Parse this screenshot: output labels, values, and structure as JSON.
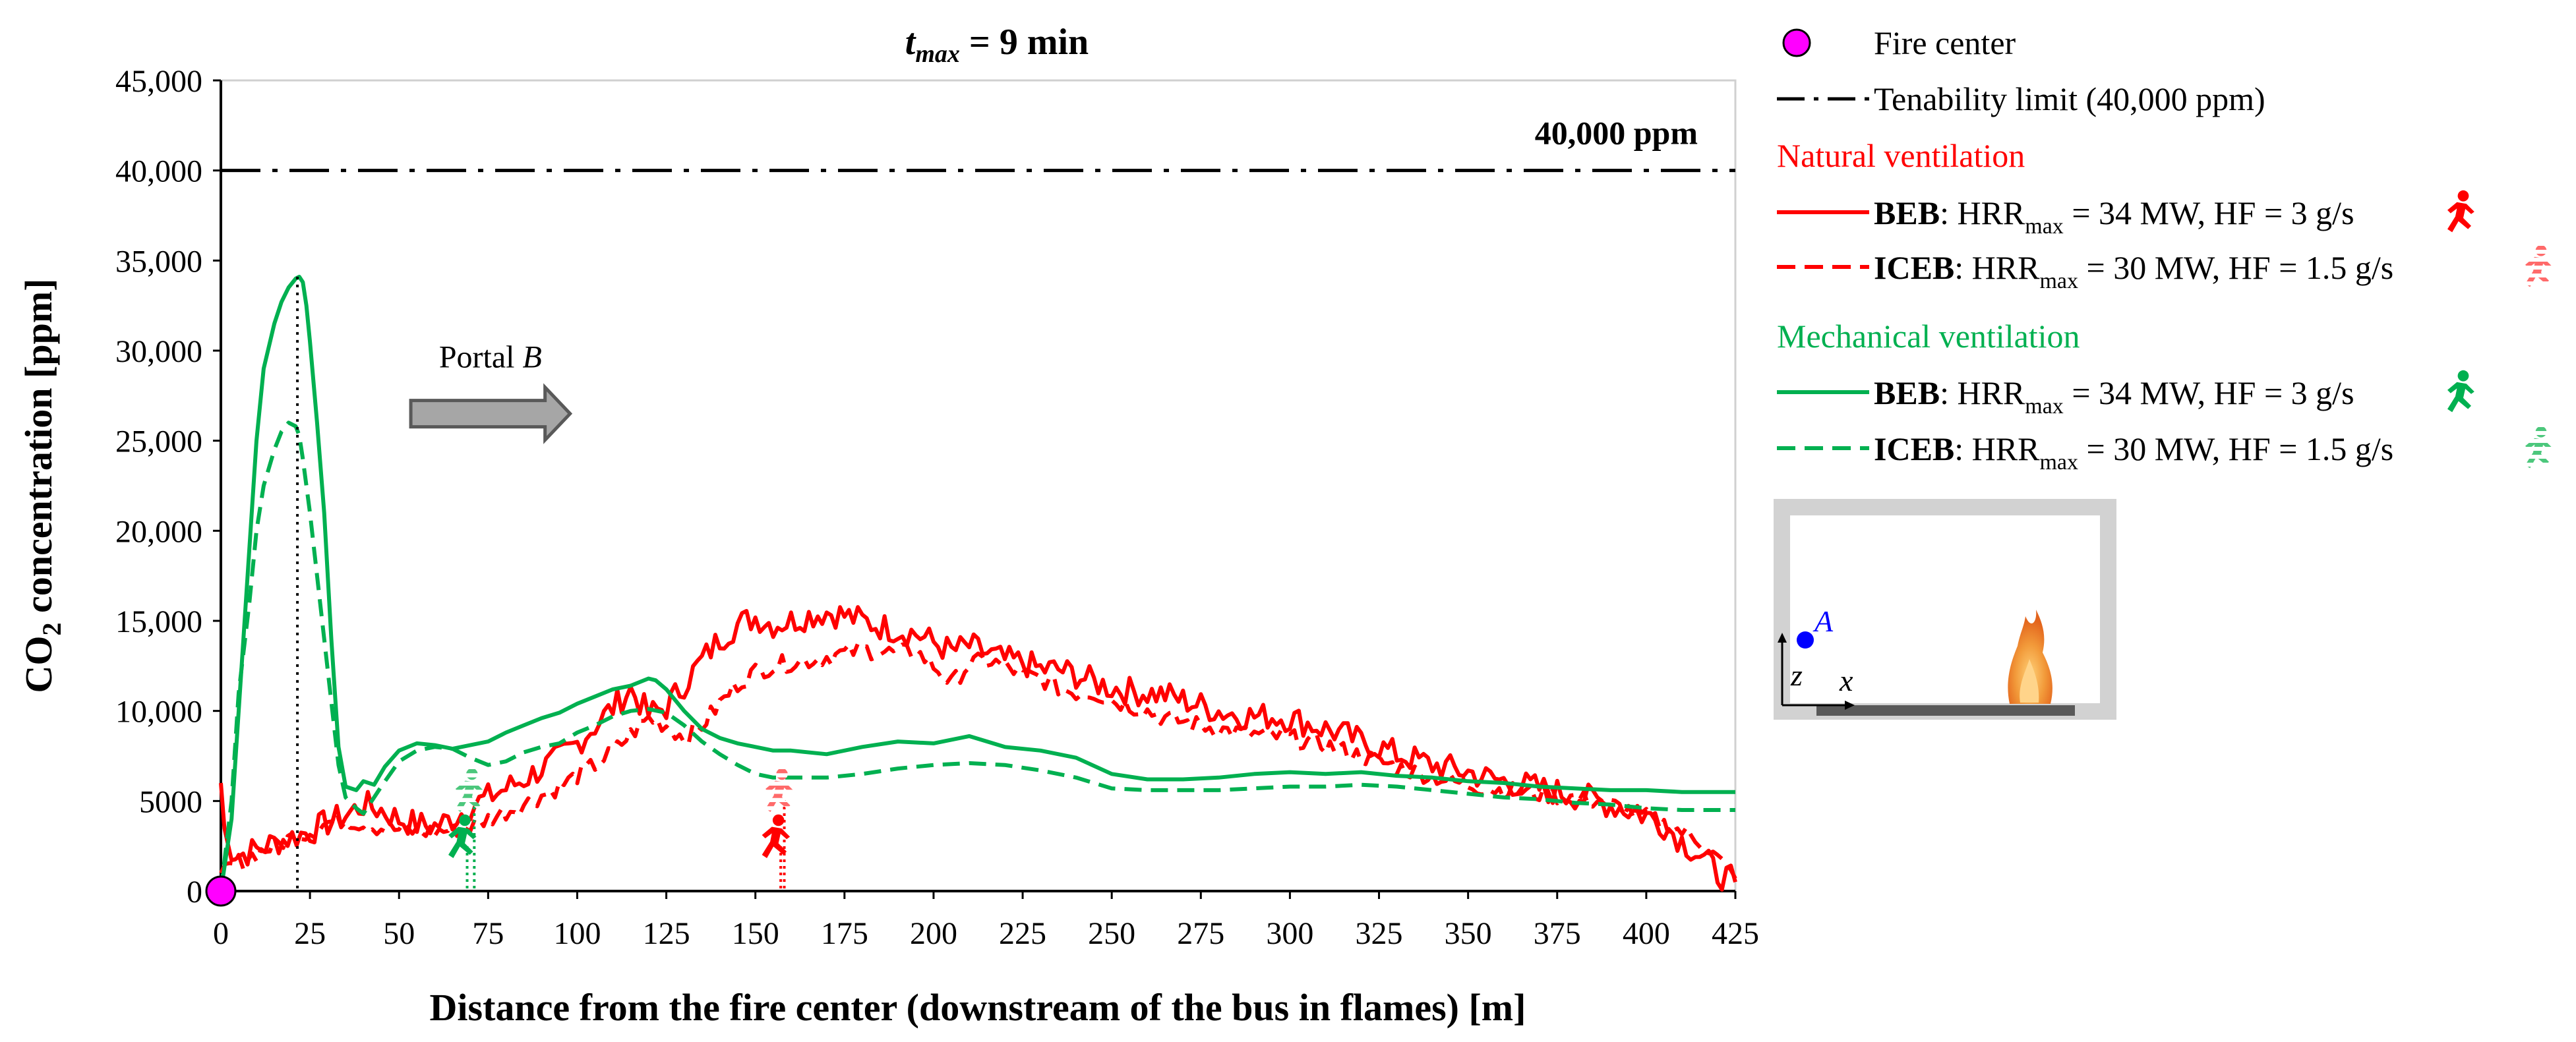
{
  "chart_data": {
    "type": "line",
    "title": {
      "prefix": "t",
      "sub": "max",
      "rest": " = 9 min"
    },
    "xlabel": "Distance from the fire center (downstream of the bus in flames) [m]",
    "ylabel": {
      "pre": "CO",
      "sub": "2",
      "post": " concentration [ppm]"
    },
    "xlim": [
      0,
      425
    ],
    "ylim": [
      0,
      45000
    ],
    "x_ticks": [
      0,
      25,
      50,
      75,
      100,
      125,
      150,
      175,
      200,
      225,
      250,
      275,
      300,
      325,
      350,
      375,
      400,
      425
    ],
    "y_ticks": [
      {
        "value": 0,
        "label": "0"
      },
      {
        "value": 5000,
        "label": "5000"
      },
      {
        "value": 10000,
        "label": "10,000"
      },
      {
        "value": 15000,
        "label": "15,000"
      },
      {
        "value": 20000,
        "label": "20,000"
      },
      {
        "value": 25000,
        "label": "25,000"
      },
      {
        "value": 30000,
        "label": "30,000"
      },
      {
        "value": 35000,
        "label": "35,000"
      },
      {
        "value": 40000,
        "label": "40,000"
      },
      {
        "value": 45000,
        "label": "45,000"
      }
    ],
    "tenability_limit": {
      "value": 40000,
      "label": "40,000 ppm"
    },
    "peak_marker_x": 20,
    "annotation": {
      "label_pre": "Portal ",
      "label_italic": "B",
      "x_start": 57,
      "x_end": 98,
      "y": 26500
    },
    "series": [
      {
        "name": "Natural ventilation BEB",
        "color": "#ff0000",
        "dash": "solid",
        "noise": 800,
        "x": [
          0,
          1,
          2,
          5,
          10,
          15,
          20,
          25,
          30,
          35,
          40,
          45,
          50,
          55,
          60,
          65,
          70,
          75,
          80,
          85,
          90,
          95,
          100,
          105,
          110,
          115,
          120,
          125,
          130,
          135,
          140,
          145,
          150,
          155,
          160,
          165,
          170,
          175,
          180,
          185,
          190,
          195,
          200,
          205,
          210,
          215,
          220,
          225,
          230,
          235,
          240,
          245,
          250,
          255,
          260,
          265,
          270,
          275,
          280,
          285,
          290,
          295,
          300,
          305,
          310,
          315,
          320,
          325,
          330,
          335,
          340,
          345,
          350,
          355,
          360,
          365,
          370,
          375,
          380,
          385,
          390,
          395,
          400,
          405,
          410,
          415,
          420,
          425
        ],
        "y": [
          6000,
          3500,
          2500,
          2000,
          2300,
          2700,
          3000,
          3300,
          3800,
          4200,
          4800,
          4500,
          4000,
          3700,
          3600,
          4000,
          4700,
          5200,
          5700,
          6200,
          6800,
          7400,
          8200,
          9200,
          10200,
          11200,
          9800,
          10200,
          11500,
          12800,
          14000,
          14800,
          15200,
          14800,
          15000,
          15300,
          15500,
          15300,
          15000,
          14700,
          14500,
          14300,
          13800,
          13300,
          13600,
          13200,
          12800,
          12700,
          12300,
          12300,
          12000,
          11600,
          11300,
          11100,
          11000,
          10900,
          10600,
          10300,
          10000,
          9800,
          9700,
          9700,
          9600,
          9300,
          9000,
          8700,
          8300,
          8000,
          7600,
          7300,
          7000,
          6800,
          6600,
          6300,
          6100,
          5900,
          5700,
          5500,
          5300,
          5100,
          4800,
          4500,
          4200,
          3700,
          2800,
          2000,
          1000,
          500
        ]
      },
      {
        "name": "Natural ventilation ICEB",
        "color": "#ff0000",
        "dash": "dashed",
        "noise": 500,
        "x": [
          0,
          5,
          10,
          15,
          20,
          25,
          30,
          35,
          40,
          45,
          50,
          55,
          60,
          65,
          70,
          75,
          80,
          85,
          90,
          95,
          100,
          105,
          110,
          115,
          120,
          125,
          130,
          135,
          140,
          145,
          150,
          155,
          160,
          165,
          170,
          175,
          180,
          185,
          190,
          195,
          200,
          205,
          210,
          215,
          220,
          225,
          230,
          235,
          240,
          245,
          250,
          255,
          260,
          265,
          270,
          275,
          280,
          285,
          290,
          295,
          300,
          305,
          310,
          315,
          320,
          325,
          330,
          335,
          340,
          345,
          350,
          355,
          360,
          365,
          370,
          375,
          380,
          385,
          390,
          395,
          400,
          405,
          410,
          415,
          420,
          425
        ],
        "y": [
          1000,
          1600,
          2100,
          2500,
          3000,
          3300,
          3800,
          4000,
          3700,
          3500,
          3400,
          3300,
          3300,
          3400,
          3600,
          4000,
          4400,
          4800,
          5300,
          5800,
          6400,
          7000,
          7700,
          8700,
          9600,
          9200,
          8500,
          9200,
          10400,
          11500,
          12200,
          12500,
          12700,
          12800,
          13000,
          13200,
          13400,
          13300,
          13200,
          13300,
          12500,
          11500,
          12600,
          12800,
          12500,
          12000,
          11800,
          11300,
          11000,
          11000,
          10600,
          10300,
          10000,
          9600,
          9400,
          9200,
          9000,
          8800,
          8700,
          8600,
          8500,
          8300,
          8100,
          7800,
          7500,
          7200,
          6900,
          6600,
          6400,
          6100,
          5900,
          5700,
          5600,
          5500,
          5400,
          5300,
          5200,
          5000,
          4800,
          4500,
          4100,
          3700,
          3300,
          2800,
          1800,
          700
        ]
      },
      {
        "name": "Mechanical ventilation BEB",
        "color": "#00b050",
        "dash": "solid",
        "noise": 0,
        "x": [
          0,
          3,
          5,
          8,
          10,
          12,
          15,
          17,
          19,
          21,
          22,
          23,
          24,
          25,
          27,
          29,
          31,
          33,
          35,
          38,
          40,
          43,
          46,
          50,
          55,
          60,
          65,
          70,
          75,
          80,
          85,
          90,
          95,
          100,
          105,
          110,
          115,
          120,
          122,
          125,
          130,
          135,
          140,
          145,
          150,
          155,
          160,
          170,
          180,
          190,
          200,
          210,
          220,
          230,
          240,
          250,
          260,
          270,
          280,
          290,
          300,
          310,
          320,
          330,
          340,
          350,
          360,
          370,
          380,
          390,
          400,
          410,
          420,
          425
        ],
        "y": [
          0,
          4000,
          10000,
          19000,
          25000,
          29000,
          31500,
          32700,
          33500,
          34000,
          34100,
          33800,
          32500,
          30500,
          26000,
          21000,
          14000,
          8000,
          5800,
          5600,
          6100,
          5900,
          6900,
          7800,
          8200,
          8100,
          7900,
          8100,
          8300,
          8800,
          9200,
          9600,
          9900,
          10400,
          10800,
          11200,
          11400,
          11800,
          11700,
          11200,
          10000,
          9000,
          8500,
          8200,
          8000,
          7800,
          7800,
          7600,
          8000,
          8300,
          8200,
          8600,
          8000,
          7800,
          7400,
          6500,
          6200,
          6200,
          6300,
          6500,
          6600,
          6500,
          6600,
          6400,
          6300,
          6100,
          6000,
          5800,
          5700,
          5600,
          5600,
          5500,
          5500,
          5500
        ]
      },
      {
        "name": "Mechanical ventilation ICEB",
        "color": "#00b050",
        "dash": "dashed",
        "noise": 0,
        "x": [
          0,
          3,
          5,
          8,
          10,
          12,
          15,
          17,
          19,
          21,
          22,
          23,
          25,
          27,
          29,
          31,
          33,
          35,
          38,
          40,
          45,
          50,
          55,
          60,
          65,
          70,
          75,
          80,
          85,
          90,
          95,
          100,
          105,
          110,
          115,
          120,
          125,
          130,
          135,
          140,
          145,
          150,
          155,
          160,
          170,
          180,
          190,
          200,
          210,
          220,
          230,
          240,
          250,
          260,
          270,
          280,
          290,
          300,
          310,
          320,
          330,
          340,
          350,
          360,
          370,
          380,
          390,
          400,
          410,
          420,
          425
        ],
        "y": [
          0,
          5000,
          11000,
          16000,
          20000,
          22500,
          24500,
          25500,
          26000,
          25800,
          25300,
          24000,
          21000,
          17500,
          14000,
          10500,
          7000,
          5200,
          4600,
          4300,
          5800,
          7200,
          7800,
          8000,
          7900,
          7400,
          7000,
          7200,
          7700,
          8000,
          8200,
          8800,
          9200,
          9700,
          10000,
          10100,
          9900,
          9200,
          8300,
          7600,
          7000,
          6500,
          6300,
          6300,
          6300,
          6500,
          6800,
          7000,
          7100,
          7000,
          6700,
          6300,
          5700,
          5600,
          5600,
          5600,
          5700,
          5800,
          5800,
          5900,
          5800,
          5600,
          5400,
          5200,
          5100,
          4900,
          4800,
          4600,
          4500,
          4500,
          4500
        ]
      }
    ],
    "occupants": [
      {
        "x_pct": 68,
        "color": "#00b050",
        "style": "solid"
      },
      {
        "x_pct": 70,
        "color": "#00b050",
        "style": "hatched"
      },
      {
        "x_pct": 156,
        "color": "#ff0000",
        "style": "solid"
      },
      {
        "x_pct": 157,
        "color": "#ff0000",
        "style": "hatched"
      }
    ],
    "fire_center_x": 0
  },
  "legend": {
    "fire_center": "Fire center",
    "tenability": "Tenability limit (40,000 ppm)",
    "natural_title": "Natural ventilation",
    "mechanical_title": "Mechanical ventilation",
    "entries": [
      {
        "bold": "BEB",
        "pre": ": HRR",
        "sub": "max",
        "post": " = 34 MW, HF = 3 g/s"
      },
      {
        "bold": "ICEB",
        "pre": ": HRR",
        "sub": "max",
        "post": " = 30 MW, HF = 1.5 g/s"
      },
      {
        "bold": "BEB",
        "pre": ": HRR",
        "sub": "max",
        "post": " = 34 MW, HF = 3 g/s"
      },
      {
        "bold": "ICEB",
        "pre": ": HRR",
        "sub": "max",
        "post": " = 30 MW, HF = 1.5 g/s"
      }
    ],
    "colors": {
      "red": "#ff0000",
      "green": "#00b050",
      "fire": "#ff00ff"
    }
  },
  "inset": {
    "point_label": "A",
    "axis_z": "z",
    "axis_x": "x"
  }
}
